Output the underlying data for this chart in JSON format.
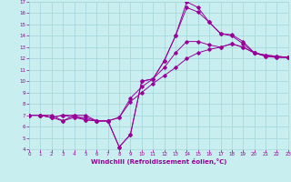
{
  "xlabel": "Windchill (Refroidissement éolien,°C)",
  "background_color": "#c8eef0",
  "grid_color": "#a8d8dc",
  "line_color": "#990099",
  "xlim": [
    0,
    23
  ],
  "ylim": [
    4,
    17
  ],
  "xticks": [
    0,
    1,
    2,
    3,
    4,
    5,
    6,
    7,
    8,
    9,
    10,
    11,
    12,
    13,
    14,
    15,
    16,
    17,
    18,
    19,
    20,
    21,
    22,
    23
  ],
  "yticks": [
    4,
    5,
    6,
    7,
    8,
    9,
    10,
    11,
    12,
    13,
    14,
    15,
    16,
    17
  ],
  "series1": [
    [
      0,
      7
    ],
    [
      1,
      7
    ],
    [
      2,
      7
    ],
    [
      3,
      6.5
    ],
    [
      4,
      7
    ],
    [
      5,
      7
    ],
    [
      6,
      6.5
    ],
    [
      7,
      6.5
    ],
    [
      8,
      4.2
    ],
    [
      9,
      5.3
    ],
    [
      10,
      10.0
    ],
    [
      11,
      10.2
    ],
    [
      12,
      11.8
    ],
    [
      13,
      14.0
    ],
    [
      14,
      17.0
    ],
    [
      15,
      16.5
    ],
    [
      16,
      15.2
    ],
    [
      17,
      14.2
    ],
    [
      18,
      14.0
    ],
    [
      19,
      13.3
    ],
    [
      20,
      12.5
    ],
    [
      21,
      12.2
    ],
    [
      22,
      12.1
    ],
    [
      23,
      12.1
    ]
  ],
  "series2": [
    [
      0,
      7
    ],
    [
      1,
      7
    ],
    [
      2,
      6.8
    ],
    [
      3,
      6.5
    ],
    [
      4,
      6.8
    ],
    [
      5,
      6.8
    ],
    [
      6,
      6.5
    ],
    [
      7,
      6.5
    ],
    [
      8,
      4.2
    ],
    [
      9,
      5.3
    ],
    [
      10,
      10.0
    ],
    [
      11,
      10.2
    ],
    [
      12,
      11.8
    ],
    [
      13,
      14.0
    ],
    [
      14,
      16.5
    ],
    [
      15,
      16.1
    ],
    [
      16,
      15.2
    ],
    [
      17,
      14.2
    ],
    [
      18,
      14.1
    ],
    [
      19,
      13.5
    ],
    [
      20,
      12.5
    ],
    [
      21,
      12.2
    ],
    [
      22,
      12.1
    ],
    [
      23,
      12.1
    ]
  ],
  "series3": [
    [
      0,
      7
    ],
    [
      1,
      7
    ],
    [
      2,
      6.8
    ],
    [
      3,
      7.0
    ],
    [
      4,
      6.8
    ],
    [
      5,
      6.6
    ],
    [
      6,
      6.5
    ],
    [
      7,
      6.5
    ],
    [
      8,
      6.8
    ],
    [
      9,
      8.5
    ],
    [
      10,
      9.5
    ],
    [
      11,
      10.2
    ],
    [
      12,
      11.2
    ],
    [
      13,
      12.5
    ],
    [
      14,
      13.5
    ],
    [
      15,
      13.5
    ],
    [
      16,
      13.2
    ],
    [
      17,
      13.0
    ],
    [
      18,
      13.3
    ],
    [
      19,
      13.0
    ],
    [
      20,
      12.5
    ],
    [
      21,
      12.3
    ],
    [
      22,
      12.2
    ],
    [
      23,
      12.1
    ]
  ],
  "series4": [
    [
      0,
      7
    ],
    [
      1,
      7
    ],
    [
      2,
      6.8
    ],
    [
      3,
      7.0
    ],
    [
      4,
      7.0
    ],
    [
      5,
      6.6
    ],
    [
      6,
      6.5
    ],
    [
      7,
      6.5
    ],
    [
      8,
      6.8
    ],
    [
      9,
      8.2
    ],
    [
      10,
      9.0
    ],
    [
      11,
      9.8
    ],
    [
      12,
      10.5
    ],
    [
      13,
      11.2
    ],
    [
      14,
      12.0
    ],
    [
      15,
      12.5
    ],
    [
      16,
      12.8
    ],
    [
      17,
      13.0
    ],
    [
      18,
      13.3
    ],
    [
      19,
      13.0
    ],
    [
      20,
      12.5
    ],
    [
      21,
      12.3
    ],
    [
      22,
      12.2
    ],
    [
      23,
      12.1
    ]
  ]
}
